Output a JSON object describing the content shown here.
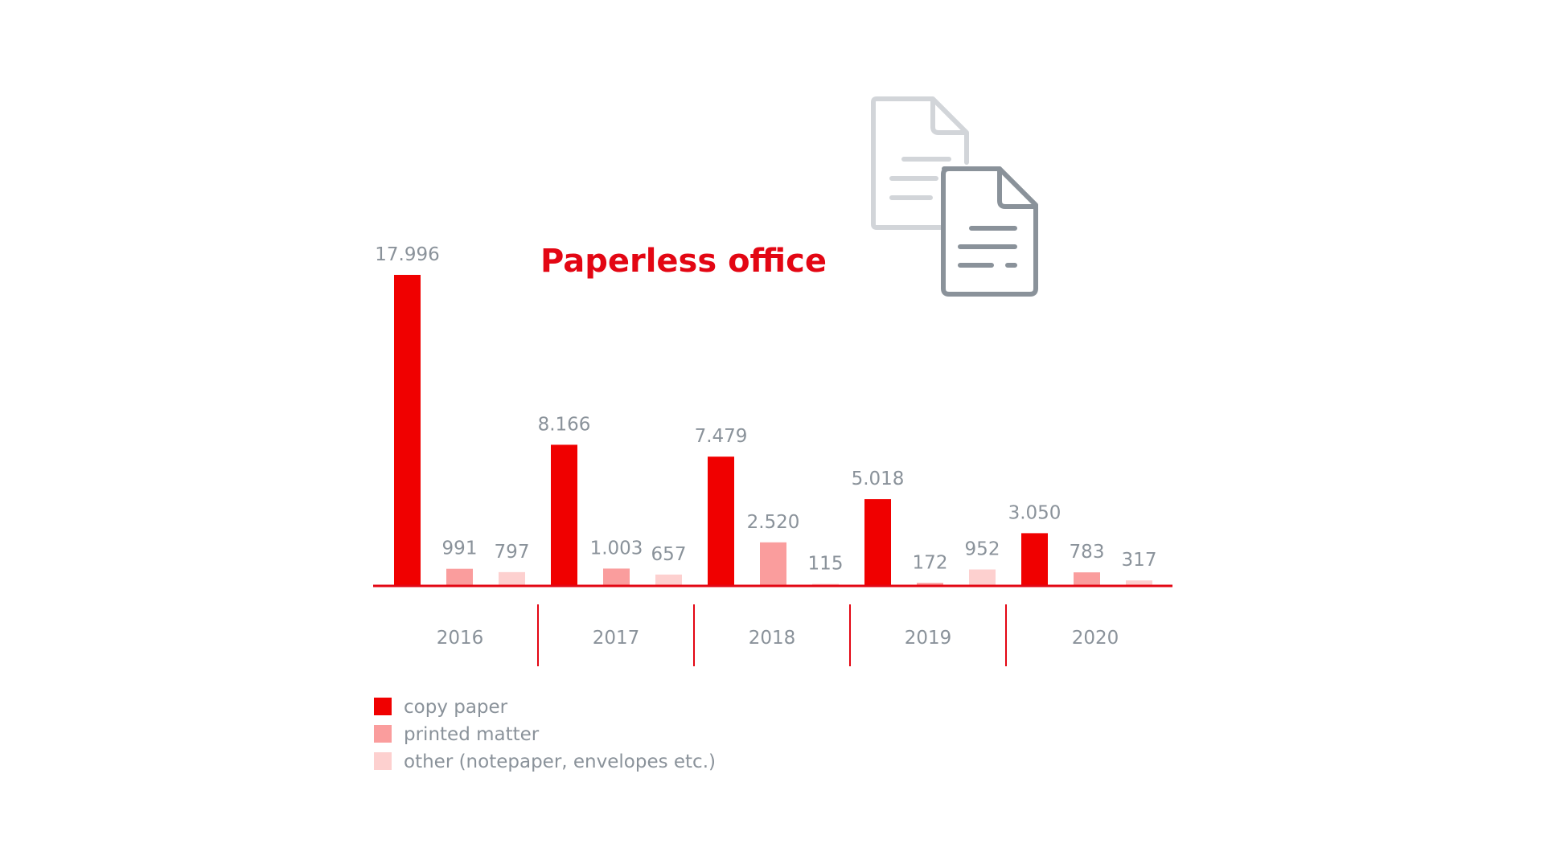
{
  "chart_data": {
    "type": "bar",
    "title": "Paperless office",
    "categories": [
      "2016",
      "2017",
      "2018",
      "2019",
      "2020"
    ],
    "series": [
      {
        "name": "copy paper",
        "values": [
          17996,
          8166,
          7479,
          5018,
          3050
        ],
        "labels": [
          "17.996",
          "8.166",
          "7.479",
          "5.018",
          "3.050"
        ]
      },
      {
        "name": "printed matter",
        "values": [
          991,
          1003,
          2520,
          172,
          783
        ],
        "labels": [
          "991",
          "1.003",
          "2.520",
          "172",
          "783"
        ]
      },
      {
        "name": "other (notepaper, envelopes etc.)",
        "values": [
          797,
          657,
          115,
          952,
          317
        ],
        "labels": [
          "797",
          "657",
          "115",
          "952",
          "317"
        ]
      }
    ],
    "ylim": [
      0,
      17996
    ],
    "grid": false,
    "legend": "bottom-left"
  },
  "colors": {
    "copy_paper": "#f00000",
    "printed_matter": "#fa9d9d",
    "other": "#fdd0cf",
    "axis": "#e30613",
    "icon": "#8a929a",
    "icon_light": "#d2d5d9"
  },
  "icons": [
    "documents-icon"
  ]
}
